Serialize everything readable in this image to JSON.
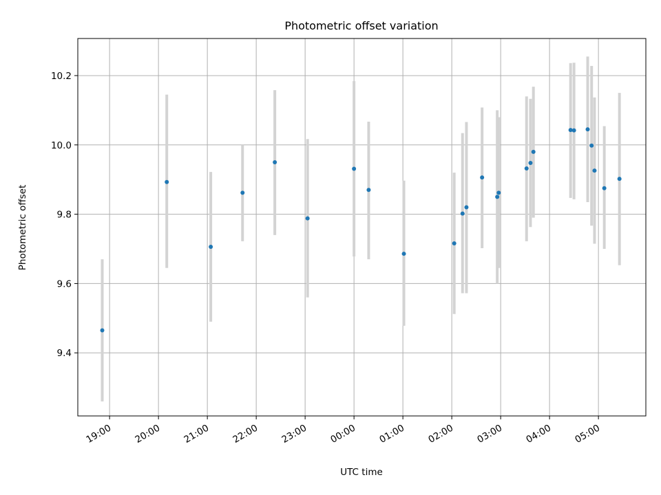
{
  "chart_data": {
    "type": "scatter",
    "title": "Photometric offset variation",
    "xlabel": "UTC time",
    "ylabel": "Photometric offset",
    "x_ticks": [
      "19:00",
      "20:00",
      "21:00",
      "22:00",
      "23:00",
      "00:00",
      "01:00",
      "02:00",
      "03:00",
      "04:00",
      "05:00"
    ],
    "x_tick_hours": [
      19,
      20,
      21,
      22,
      23,
      24,
      25,
      26,
      27,
      28,
      29
    ],
    "y_ticks": [
      "9.4",
      "9.6",
      "9.8",
      "10.0",
      "10.2"
    ],
    "y_tick_values": [
      9.4,
      9.6,
      9.8,
      10.0,
      10.2
    ],
    "xlim_hours": [
      18.35,
      29.97
    ],
    "ylim": [
      9.218,
      10.307
    ],
    "grid": true,
    "colors": {
      "point": "#1f77b4",
      "errorbar": "#d3d3d3",
      "grid": "#b0b0b0",
      "frame": "#000000"
    },
    "points": [
      {
        "hour": 18.85,
        "y": 9.465,
        "lo": 9.26,
        "hi": 9.67
      },
      {
        "hour": 20.17,
        "y": 9.893,
        "lo": 9.645,
        "hi": 10.145
      },
      {
        "hour": 21.07,
        "y": 9.706,
        "lo": 9.49,
        "hi": 9.922
      },
      {
        "hour": 21.72,
        "y": 9.862,
        "lo": 9.722,
        "hi": 10.0
      },
      {
        "hour": 22.38,
        "y": 9.95,
        "lo": 9.74,
        "hi": 10.158
      },
      {
        "hour": 23.05,
        "y": 9.788,
        "lo": 9.56,
        "hi": 10.017
      },
      {
        "hour": 24.0,
        "y": 9.931,
        "lo": 9.678,
        "hi": 10.184
      },
      {
        "hour": 24.3,
        "y": 9.87,
        "lo": 9.67,
        "hi": 10.067
      },
      {
        "hour": 25.02,
        "y": 9.686,
        "lo": 9.478,
        "hi": 9.897
      },
      {
        "hour": 26.05,
        "y": 9.716,
        "lo": 9.512,
        "hi": 9.92
      },
      {
        "hour": 26.22,
        "y": 9.802,
        "lo": 9.572,
        "hi": 10.034
      },
      {
        "hour": 26.3,
        "y": 9.82,
        "lo": 9.572,
        "hi": 10.066
      },
      {
        "hour": 26.62,
        "y": 9.906,
        "lo": 9.702,
        "hi": 10.108
      },
      {
        "hour": 26.93,
        "y": 9.85,
        "lo": 9.6,
        "hi": 10.1
      },
      {
        "hour": 26.96,
        "y": 9.862,
        "lo": 9.645,
        "hi": 10.08
      },
      {
        "hour": 27.53,
        "y": 9.932,
        "lo": 9.722,
        "hi": 10.14
      },
      {
        "hour": 27.61,
        "y": 9.948,
        "lo": 9.763,
        "hi": 10.133
      },
      {
        "hour": 27.67,
        "y": 9.98,
        "lo": 9.79,
        "hi": 10.168
      },
      {
        "hour": 28.43,
        "y": 10.043,
        "lo": 9.847,
        "hi": 10.236
      },
      {
        "hour": 28.5,
        "y": 10.042,
        "lo": 9.843,
        "hi": 10.237
      },
      {
        "hour": 28.78,
        "y": 10.045,
        "lo": 9.835,
        "hi": 10.255
      },
      {
        "hour": 28.86,
        "y": 9.998,
        "lo": 9.767,
        "hi": 10.228
      },
      {
        "hour": 28.92,
        "y": 9.926,
        "lo": 9.715,
        "hi": 10.137
      },
      {
        "hour": 29.12,
        "y": 9.875,
        "lo": 9.7,
        "hi": 10.054
      },
      {
        "hour": 29.43,
        "y": 9.902,
        "lo": 9.653,
        "hi": 10.15
      }
    ]
  }
}
